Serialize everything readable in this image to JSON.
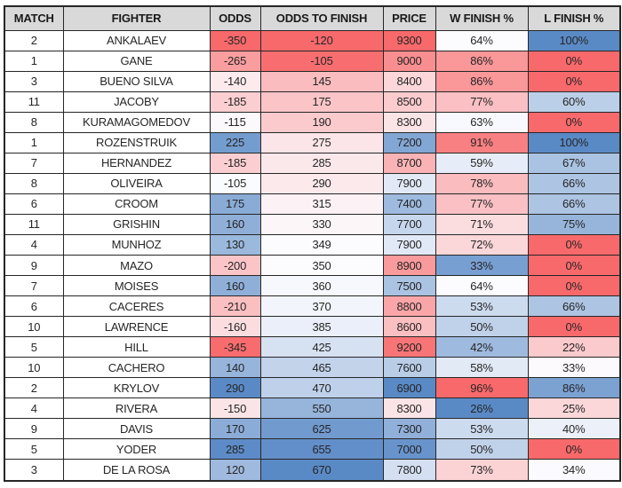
{
  "style": {
    "page_bg": "#FFFFFF",
    "header_bg": "#D9D9D9",
    "grid_color": "#262626",
    "text_color": "#262626",
    "header_text_color": "#1A1A1A",
    "scale_red": "#F8696B",
    "scale_mid": "#FCFCFF",
    "scale_blue": "#5A8AC6"
  },
  "chart_data": {
    "type": "table",
    "columns": [
      {
        "label": "MATCH",
        "key": "match",
        "scale": null,
        "suffix": ""
      },
      {
        "label": "FIGHTER",
        "key": "fighter",
        "scale": null,
        "suffix": ""
      },
      {
        "label": "ODDS",
        "key": "odds",
        "scale": "red_white_blue",
        "suffix": ""
      },
      {
        "label": "ODDS TO FINISH",
        "key": "odds-to-finish",
        "scale": "red_white_blue",
        "suffix": ""
      },
      {
        "label": "PRICE",
        "key": "price",
        "scale": "blue_white_red",
        "suffix": ""
      },
      {
        "label": "W FINISH %",
        "key": "w-finish-pct",
        "scale": "blue_white_red",
        "suffix": "%"
      },
      {
        "label": "L FINISH %",
        "key": "l-finish-pct",
        "scale": "red_white_blue",
        "suffix": "%"
      }
    ],
    "rows": [
      [
        2,
        "ANKALAEV",
        -350,
        -120,
        9300,
        64,
        100
      ],
      [
        1,
        "GANE",
        -265,
        -105,
        9000,
        86,
        0
      ],
      [
        3,
        "BUENO SILVA",
        -140,
        145,
        8400,
        86,
        0
      ],
      [
        11,
        "JACOBY",
        -185,
        175,
        8500,
        77,
        60
      ],
      [
        8,
        "KURAMAGOMEDOV",
        -115,
        190,
        8300,
        63,
        0
      ],
      [
        1,
        "ROZENSTRUIK",
        225,
        275,
        7200,
        91,
        100
      ],
      [
        7,
        "HERNANDEZ",
        -185,
        285,
        8700,
        59,
        67
      ],
      [
        8,
        "OLIVEIRA",
        -105,
        290,
        7900,
        78,
        66
      ],
      [
        6,
        "CROOM",
        175,
        315,
        7400,
        77,
        66
      ],
      [
        11,
        "GRISHIN",
        160,
        330,
        7700,
        71,
        75
      ],
      [
        4,
        "MUNHOZ",
        130,
        349,
        7900,
        72,
        0
      ],
      [
        9,
        "MAZO",
        -200,
        350,
        8900,
        33,
        0
      ],
      [
        7,
        "MOISES",
        160,
        360,
        7500,
        64,
        0
      ],
      [
        6,
        "CACERES",
        -210,
        370,
        8800,
        53,
        66
      ],
      [
        10,
        "LAWRENCE",
        -160,
        385,
        8600,
        50,
        0
      ],
      [
        5,
        "HILL",
        -345,
        425,
        9200,
        42,
        22
      ],
      [
        10,
        "CACHERO",
        140,
        465,
        7600,
        58,
        33
      ],
      [
        2,
        "KRYLOV",
        290,
        470,
        6900,
        96,
        86
      ],
      [
        4,
        "RIVERA",
        -150,
        550,
        8300,
        26,
        25
      ],
      [
        9,
        "DAVIS",
        170,
        625,
        7300,
        53,
        40
      ],
      [
        5,
        "YODER",
        285,
        655,
        7000,
        50,
        0
      ],
      [
        3,
        "DE LA ROSA",
        120,
        670,
        7800,
        73,
        34
      ]
    ],
    "conditional_formatting": {
      "method": "3_color_scale",
      "midpoint": "median",
      "red_white_blue": "min=red, median=white, max=blue",
      "blue_white_red": "min=blue, median=white, max=red"
    }
  }
}
